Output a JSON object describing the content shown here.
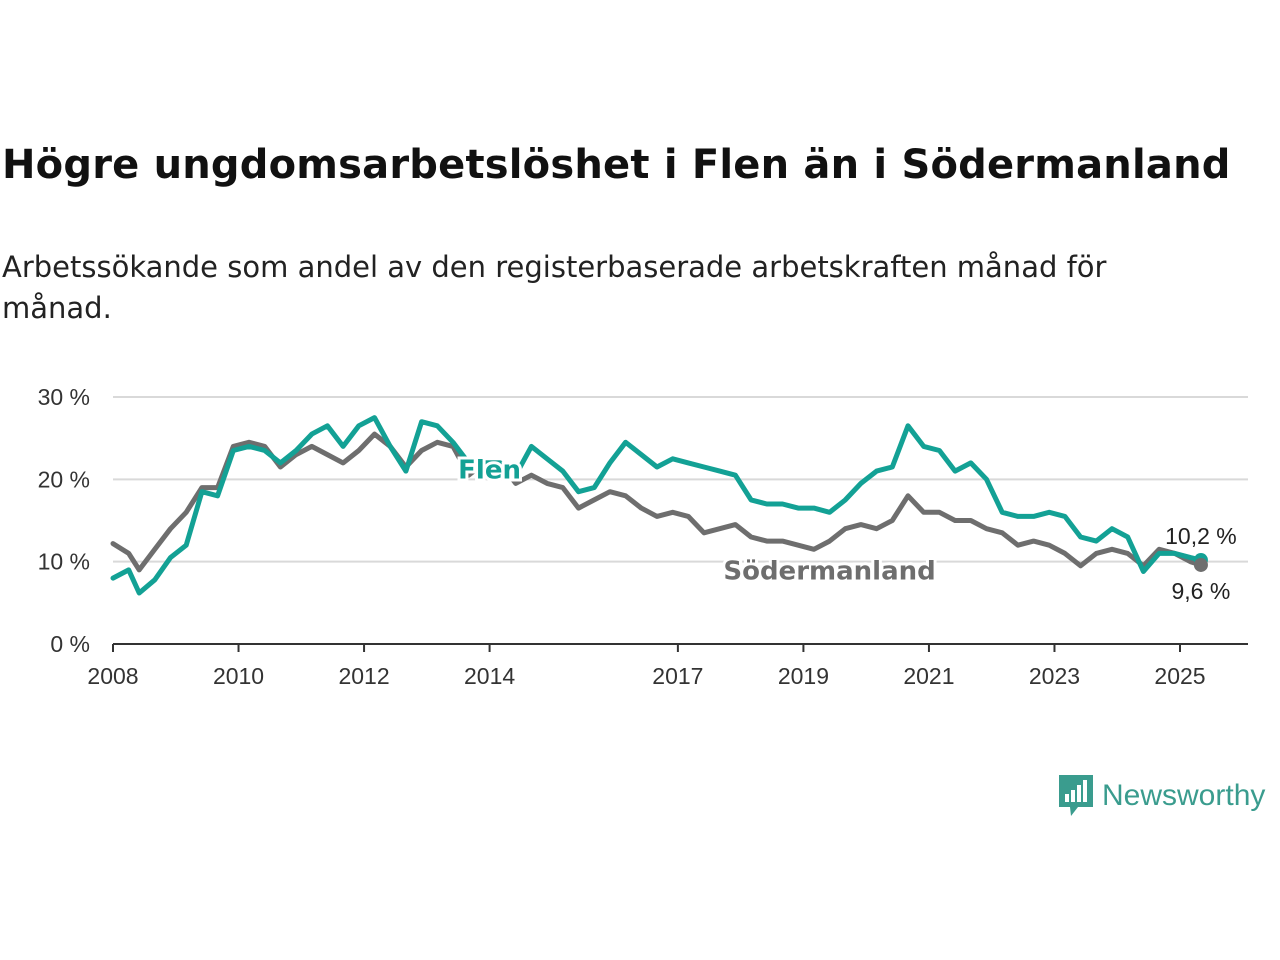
{
  "header": {
    "title": "Högre ungdomsarbetslöshet i Flen än i Södermanland",
    "subtitle": "Arbetssökande som andel av den registerbaserade arbetskraften månad för månad."
  },
  "brand": {
    "name": "Newsworthy",
    "icon": "newsworthy-logo-icon",
    "color": "#3a9c8e"
  },
  "chart_data": {
    "type": "line",
    "title": "Högre ungdomsarbetslöshet i Flen än i Södermanland",
    "subtitle": "Arbetssökande som andel av den registerbaserade arbetskraften månad för månad.",
    "xlabel": "",
    "ylabel": "",
    "x_ticks": [
      "2008",
      "2010",
      "2012",
      "2014",
      "2017",
      "2019",
      "2021",
      "2023",
      "2025"
    ],
    "y_ticks": [
      "0 %",
      "10 %",
      "20 %",
      "30 %"
    ],
    "xlim": [
      "2008-01",
      "2026-02"
    ],
    "ylim": [
      0,
      30
    ],
    "grid": "horizontal",
    "legend": "inline labels",
    "series": [
      {
        "name": "Flen",
        "color": "#13a195",
        "end_label": "10,2 %",
        "points": [
          [
            "2008-01",
            8.0
          ],
          [
            "2008-04",
            9.0
          ],
          [
            "2008-06",
            6.2
          ],
          [
            "2008-09",
            7.8
          ],
          [
            "2008-12",
            10.5
          ],
          [
            "2009-03",
            12.0
          ],
          [
            "2009-06",
            18.5
          ],
          [
            "2009-09",
            18.0
          ],
          [
            "2009-12",
            23.5
          ],
          [
            "2010-03",
            24.0
          ],
          [
            "2010-06",
            23.5
          ],
          [
            "2010-09",
            22.0
          ],
          [
            "2010-12",
            23.5
          ],
          [
            "2011-03",
            25.5
          ],
          [
            "2011-06",
            26.5
          ],
          [
            "2011-09",
            24.0
          ],
          [
            "2011-12",
            26.5
          ],
          [
            "2012-03",
            27.5
          ],
          [
            "2012-06",
            24.0
          ],
          [
            "2012-09",
            21.0
          ],
          [
            "2012-12",
            27.0
          ],
          [
            "2013-03",
            26.5
          ],
          [
            "2013-06",
            24.5
          ],
          [
            "2013-09",
            22.0
          ],
          [
            "2013-12",
            22.0
          ],
          [
            "2014-03",
            22.0
          ],
          [
            "2014-06",
            20.5
          ],
          [
            "2014-09",
            24.0
          ],
          [
            "2014-12",
            22.5
          ],
          [
            "2015-03",
            21.0
          ],
          [
            "2015-06",
            18.5
          ],
          [
            "2015-09",
            19.0
          ],
          [
            "2015-12",
            22.0
          ],
          [
            "2016-03",
            24.5
          ],
          [
            "2016-06",
            23.0
          ],
          [
            "2016-09",
            21.5
          ],
          [
            "2016-12",
            22.5
          ],
          [
            "2017-03",
            22.0
          ],
          [
            "2017-06",
            21.5
          ],
          [
            "2017-09",
            21.0
          ],
          [
            "2017-12",
            20.5
          ],
          [
            "2018-03",
            17.5
          ],
          [
            "2018-06",
            17.0
          ],
          [
            "2018-09",
            17.0
          ],
          [
            "2018-12",
            16.5
          ],
          [
            "2019-03",
            16.5
          ],
          [
            "2019-06",
            16.0
          ],
          [
            "2019-09",
            17.5
          ],
          [
            "2019-12",
            19.5
          ],
          [
            "2020-03",
            21.0
          ],
          [
            "2020-06",
            21.5
          ],
          [
            "2020-09",
            26.5
          ],
          [
            "2020-12",
            24.0
          ],
          [
            "2021-03",
            23.5
          ],
          [
            "2021-06",
            21.0
          ],
          [
            "2021-09",
            22.0
          ],
          [
            "2021-12",
            20.0
          ],
          [
            "2022-03",
            16.0
          ],
          [
            "2022-06",
            15.5
          ],
          [
            "2022-09",
            15.5
          ],
          [
            "2022-12",
            16.0
          ],
          [
            "2023-03",
            15.5
          ],
          [
            "2023-06",
            13.0
          ],
          [
            "2023-09",
            12.5
          ],
          [
            "2023-12",
            14.0
          ],
          [
            "2024-03",
            13.0
          ],
          [
            "2024-06",
            8.8
          ],
          [
            "2024-09",
            11.0
          ],
          [
            "2024-12",
            11.0
          ],
          [
            "2025-03",
            10.5
          ],
          [
            "2025-05",
            10.2
          ]
        ]
      },
      {
        "name": "Södermanland",
        "color": "#6e6e6e",
        "end_label": "9,6 %",
        "points": [
          [
            "2008-01",
            12.2
          ],
          [
            "2008-04",
            11.0
          ],
          [
            "2008-06",
            9.0
          ],
          [
            "2008-09",
            11.5
          ],
          [
            "2008-12",
            14.0
          ],
          [
            "2009-03",
            16.0
          ],
          [
            "2009-06",
            19.0
          ],
          [
            "2009-09",
            19.0
          ],
          [
            "2009-12",
            24.0
          ],
          [
            "2010-03",
            24.5
          ],
          [
            "2010-06",
            24.0
          ],
          [
            "2010-09",
            21.5
          ],
          [
            "2010-12",
            23.0
          ],
          [
            "2011-03",
            24.0
          ],
          [
            "2011-06",
            23.0
          ],
          [
            "2011-09",
            22.0
          ],
          [
            "2011-12",
            23.5
          ],
          [
            "2012-03",
            25.5
          ],
          [
            "2012-06",
            24.0
          ],
          [
            "2012-09",
            21.5
          ],
          [
            "2012-12",
            23.5
          ],
          [
            "2013-03",
            24.5
          ],
          [
            "2013-06",
            24.0
          ],
          [
            "2013-09",
            20.5
          ],
          [
            "2013-12",
            22.0
          ],
          [
            "2014-03",
            22.0
          ],
          [
            "2014-06",
            19.5
          ],
          [
            "2014-09",
            20.5
          ],
          [
            "2014-12",
            19.5
          ],
          [
            "2015-03",
            19.0
          ],
          [
            "2015-06",
            16.5
          ],
          [
            "2015-09",
            17.5
          ],
          [
            "2015-12",
            18.5
          ],
          [
            "2016-03",
            18.0
          ],
          [
            "2016-06",
            16.5
          ],
          [
            "2016-09",
            15.5
          ],
          [
            "2016-12",
            16.0
          ],
          [
            "2017-03",
            15.5
          ],
          [
            "2017-06",
            13.5
          ],
          [
            "2017-09",
            14.0
          ],
          [
            "2017-12",
            14.5
          ],
          [
            "2018-03",
            13.0
          ],
          [
            "2018-06",
            12.5
          ],
          [
            "2018-09",
            12.5
          ],
          [
            "2018-12",
            12.0
          ],
          [
            "2019-03",
            11.5
          ],
          [
            "2019-06",
            12.5
          ],
          [
            "2019-09",
            14.0
          ],
          [
            "2019-12",
            14.5
          ],
          [
            "2020-03",
            14.0
          ],
          [
            "2020-06",
            15.0
          ],
          [
            "2020-09",
            18.0
          ],
          [
            "2020-12",
            16.0
          ],
          [
            "2021-03",
            16.0
          ],
          [
            "2021-06",
            15.0
          ],
          [
            "2021-09",
            15.0
          ],
          [
            "2021-12",
            14.0
          ],
          [
            "2022-03",
            13.5
          ],
          [
            "2022-06",
            12.0
          ],
          [
            "2022-09",
            12.5
          ],
          [
            "2022-12",
            12.0
          ],
          [
            "2023-03",
            11.0
          ],
          [
            "2023-06",
            9.5
          ],
          [
            "2023-09",
            11.0
          ],
          [
            "2023-12",
            11.5
          ],
          [
            "2024-03",
            11.0
          ],
          [
            "2024-06",
            9.5
          ],
          [
            "2024-09",
            11.5
          ],
          [
            "2024-12",
            11.0
          ],
          [
            "2025-03",
            10.0
          ],
          [
            "2025-05",
            9.6
          ]
        ]
      }
    ]
  }
}
